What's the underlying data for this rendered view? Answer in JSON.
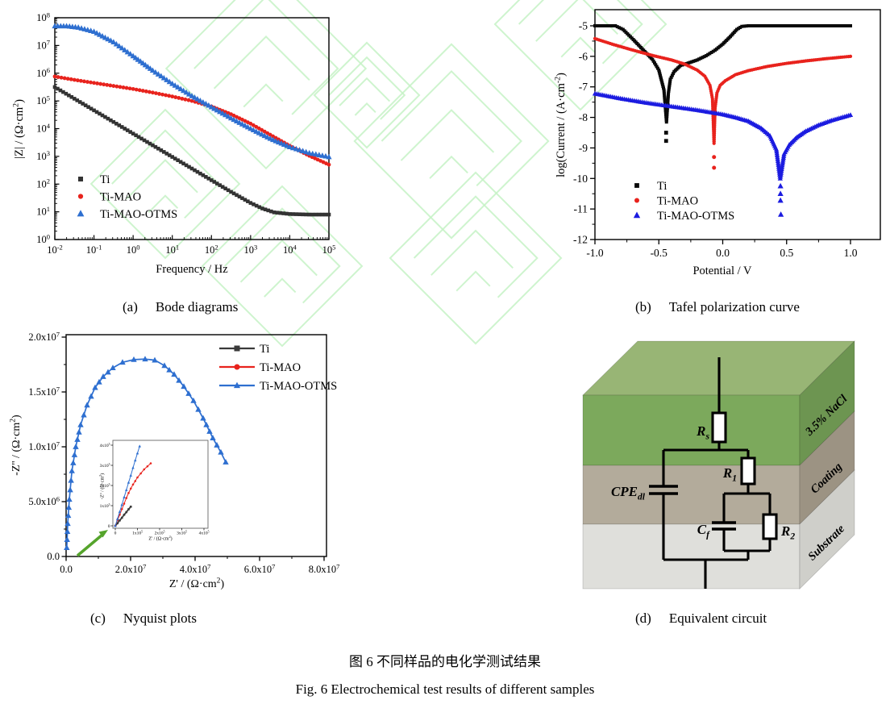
{
  "figure": {
    "caption_zh": "图 6  不同样品的电化学测试结果",
    "caption_en": "Fig. 6  Electrochemical test results of different samples",
    "subcaptions": {
      "a_prefix": "(a)",
      "a_title": "Bode diagrams",
      "b_prefix": "(b)",
      "b_title": "Tafel polarization curve",
      "c_prefix": "(c)",
      "c_title": "Nyquist plots",
      "d_prefix": "(d)",
      "d_title": "Equivalent circuit"
    }
  },
  "colors": {
    "axis": "#000000",
    "arrow_green": "#55a42c",
    "watermark_green": "#c6f2c6"
  },
  "chart_data": [
    {
      "id": "bode",
      "type": "scatter",
      "xlabel": "Frequency / Hz",
      "ylabel": "|Z| / (Ω·cm^{2})",
      "xscale": "log",
      "yscale": "log",
      "xlim_log": [
        -2,
        5
      ],
      "ylim_log": [
        0,
        8
      ],
      "xticks": [
        {
          "v": -2,
          "l": "10^{-2}"
        },
        {
          "v": -1,
          "l": "10^{-1}"
        },
        {
          "v": 0,
          "l": "10^{0}"
        },
        {
          "v": 1,
          "l": "10^{1}"
        },
        {
          "v": 2,
          "l": "10^{2}"
        },
        {
          "v": 3,
          "l": "10^{3}"
        },
        {
          "v": 4,
          "l": "10^{4}"
        },
        {
          "v": 5,
          "l": "10^{5}"
        }
      ],
      "yticks": [
        {
          "v": 0,
          "l": "10^{0}"
        },
        {
          "v": 1,
          "l": "10^{1}"
        },
        {
          "v": 2,
          "l": "10^{2}"
        },
        {
          "v": 3,
          "l": "10^{3}"
        },
        {
          "v": 4,
          "l": "10^{4}"
        },
        {
          "v": 5,
          "l": "10^{5}"
        },
        {
          "v": 6,
          "l": "10^{6}"
        },
        {
          "v": 7,
          "l": "10^{7}"
        },
        {
          "v": 8,
          "l": "10^{8}"
        }
      ],
      "legend_position": "lower-left",
      "series": [
        {
          "name": "Ti",
          "color": "#333333",
          "marker": "square",
          "points_log": [
            [
              -2,
              5.5
            ],
            [
              -1.5,
              5.08
            ],
            [
              -1,
              4.66
            ],
            [
              -0.5,
              4.24
            ],
            [
              0,
              3.82
            ],
            [
              0.5,
              3.4
            ],
            [
              1,
              2.98
            ],
            [
              1.5,
              2.56
            ],
            [
              2,
              2.14
            ],
            [
              2.5,
              1.72
            ],
            [
              3,
              1.32
            ],
            [
              3.3,
              1.12
            ],
            [
              3.6,
              0.98
            ],
            [
              4,
              0.92
            ],
            [
              4.5,
              0.9
            ],
            [
              5,
              0.9
            ]
          ]
        },
        {
          "name": "Ti-MAO",
          "color": "#e8231d",
          "marker": "circle",
          "points_log": [
            [
              -2,
              5.88
            ],
            [
              -1.5,
              5.76
            ],
            [
              -1,
              5.65
            ],
            [
              -0.5,
              5.54
            ],
            [
              0,
              5.43
            ],
            [
              0.5,
              5.3
            ],
            [
              1,
              5.16
            ],
            [
              1.5,
              5.0
            ],
            [
              2,
              4.8
            ],
            [
              2.5,
              4.52
            ],
            [
              3,
              4.18
            ],
            [
              3.5,
              3.78
            ],
            [
              4,
              3.38
            ],
            [
              4.5,
              3.02
            ],
            [
              5,
              2.7
            ]
          ]
        },
        {
          "name": "Ti-MAO-OTMS",
          "color": "#2e6fd0",
          "marker": "triangle",
          "points_log": [
            [
              -2,
              7.7
            ],
            [
              -1.7,
              7.7
            ],
            [
              -1.4,
              7.65
            ],
            [
              -1,
              7.5
            ],
            [
              -0.5,
              7.12
            ],
            [
              0,
              6.62
            ],
            [
              0.5,
              6.1
            ],
            [
              1,
              5.62
            ],
            [
              1.5,
              5.18
            ],
            [
              2,
              4.78
            ],
            [
              2.5,
              4.38
            ],
            [
              3,
              4.0
            ],
            [
              3.5,
              3.64
            ],
            [
              4,
              3.34
            ],
            [
              4.5,
              3.12
            ],
            [
              5,
              2.98
            ]
          ]
        }
      ]
    },
    {
      "id": "tafel",
      "type": "scatter",
      "xlabel": "Potential / V",
      "ylabel": "log(Current / (A·cm^{-2})",
      "xlim": [
        -1.0,
        1.0
      ],
      "ylim": [
        -12,
        -5
      ],
      "xticks": [
        {
          "v": -1.0,
          "l": "-1.0"
        },
        {
          "v": -0.5,
          "l": "-0.5"
        },
        {
          "v": 0.0,
          "l": "0.0"
        },
        {
          "v": 0.5,
          "l": "0.5"
        },
        {
          "v": 1.0,
          "l": "1.0"
        }
      ],
      "yticks": [
        {
          "v": -5,
          "l": "-5"
        },
        {
          "v": -6,
          "l": "-6"
        },
        {
          "v": -7,
          "l": "-7"
        },
        {
          "v": -8,
          "l": "-8"
        },
        {
          "v": -9,
          "l": "-9"
        },
        {
          "v": -10,
          "l": "-10"
        },
        {
          "v": -11,
          "l": "-11"
        },
        {
          "v": -12,
          "l": "-12"
        }
      ],
      "legend_position": "lower-left",
      "series": [
        {
          "name": "Ti",
          "color": "#0a0a0a",
          "marker": "square",
          "points": [
            [
              -1.0,
              -5.0
            ],
            [
              -0.84,
              -5.0
            ],
            [
              -0.78,
              -5.12
            ],
            [
              -0.7,
              -5.45
            ],
            [
              -0.62,
              -5.8
            ],
            [
              -0.55,
              -6.1
            ],
            [
              -0.5,
              -6.45
            ],
            [
              -0.46,
              -7.1
            ],
            [
              -0.44,
              -8.15
            ],
            [
              -0.425,
              -7.2
            ],
            [
              -0.41,
              -6.75
            ],
            [
              -0.38,
              -6.5
            ],
            [
              -0.33,
              -6.3
            ],
            [
              -0.27,
              -6.22
            ],
            [
              -0.2,
              -6.12
            ],
            [
              -0.13,
              -5.98
            ],
            [
              -0.06,
              -5.8
            ],
            [
              0.0,
              -5.6
            ],
            [
              0.06,
              -5.35
            ],
            [
              0.11,
              -5.12
            ],
            [
              0.15,
              -5.02
            ],
            [
              0.2,
              -5.0
            ],
            [
              0.6,
              -5.0
            ],
            [
              1.0,
              -5.0
            ]
          ],
          "outliers": [
            [
              -0.443,
              -8.5
            ],
            [
              -0.443,
              -8.77
            ]
          ]
        },
        {
          "name": "Ti-MAO",
          "color": "#e8231d",
          "marker": "circle",
          "points": [
            [
              -1.0,
              -5.42
            ],
            [
              -0.85,
              -5.62
            ],
            [
              -0.7,
              -5.8
            ],
            [
              -0.55,
              -5.97
            ],
            [
              -0.4,
              -6.12
            ],
            [
              -0.3,
              -6.25
            ],
            [
              -0.2,
              -6.45
            ],
            [
              -0.14,
              -6.65
            ],
            [
              -0.1,
              -6.95
            ],
            [
              -0.08,
              -7.4
            ],
            [
              -0.068,
              -8.85
            ],
            [
              -0.06,
              -7.7
            ],
            [
              -0.045,
              -7.2
            ],
            [
              -0.02,
              -6.95
            ],
            [
              0.02,
              -6.8
            ],
            [
              0.1,
              -6.6
            ],
            [
              0.2,
              -6.47
            ],
            [
              0.35,
              -6.33
            ],
            [
              0.5,
              -6.23
            ],
            [
              0.65,
              -6.15
            ],
            [
              0.8,
              -6.08
            ],
            [
              1.0,
              -6.0
            ]
          ],
          "outliers": [
            [
              -0.068,
              -9.3
            ],
            [
              -0.068,
              -9.65
            ]
          ]
        },
        {
          "name": "Ti-MAO-OTMS",
          "color": "#1b1be0",
          "marker": "triangle",
          "points": [
            [
              -1.0,
              -7.22
            ],
            [
              -0.8,
              -7.38
            ],
            [
              -0.6,
              -7.52
            ],
            [
              -0.4,
              -7.64
            ],
            [
              -0.2,
              -7.76
            ],
            [
              0.0,
              -7.9
            ],
            [
              0.1,
              -8.0
            ],
            [
              0.2,
              -8.12
            ],
            [
              0.3,
              -8.35
            ],
            [
              0.37,
              -8.6
            ],
            [
              0.42,
              -9.05
            ],
            [
              0.45,
              -10.0
            ],
            [
              0.48,
              -9.2
            ],
            [
              0.52,
              -8.9
            ],
            [
              0.58,
              -8.65
            ],
            [
              0.65,
              -8.45
            ],
            [
              0.75,
              -8.25
            ],
            [
              0.85,
              -8.1
            ],
            [
              1.0,
              -7.92
            ]
          ],
          "outliers": [
            [
              0.452,
              -10.25
            ],
            [
              0.452,
              -10.5
            ],
            [
              0.452,
              -10.72
            ],
            [
              0.455,
              -11.18
            ]
          ]
        }
      ]
    },
    {
      "id": "nyquist",
      "type": "line",
      "xlabel": "Z' / (Ω·cm^{2})",
      "ylabel": "-Z'' / (Ω·cm^{2})",
      "xlim": [
        0,
        82000000.0
      ],
      "ylim": [
        0,
        20000000.0
      ],
      "xticks": [
        {
          "v": 0,
          "l": "0.0"
        },
        {
          "v": 20000000.0,
          "l": "2.0x10^{7}"
        },
        {
          "v": 40000000.0,
          "l": "4.0x10^{7}"
        },
        {
          "v": 60000000.0,
          "l": "6.0x10^{7}"
        },
        {
          "v": 80000000.0,
          "l": "8.0x10^{7}"
        }
      ],
      "yticks": [
        {
          "v": 0,
          "l": "0.0"
        },
        {
          "v": 5000000.0,
          "l": "5.0x10^{6}"
        },
        {
          "v": 10000000.0,
          "l": "1.0x10^{7}"
        },
        {
          "v": 15000000.0,
          "l": "1.5x10^{7}"
        },
        {
          "v": 20000000.0,
          "l": "2.0x10^{7}"
        }
      ],
      "legend_position": "upper-right",
      "series": [
        {
          "name": "Ti",
          "color": "#3a3a3a",
          "marker": "square",
          "points": []
        },
        {
          "name": "Ti-MAO",
          "color": "#e8231d",
          "marker": "circle",
          "points": []
        },
        {
          "name": "Ti-MAO-OTMS",
          "color": "#2e6fd0",
          "marker": "triangle",
          "points": [
            [
              200000.0,
              800000.0
            ],
            [
              500000.0,
              3000000.0
            ],
            [
              1000000.0,
              5200000.0
            ],
            [
              1800000.0,
              7800000.0
            ],
            [
              3000000.0,
              10000000.0
            ],
            [
              4500000.0,
              12000000.0
            ],
            [
              6500000.0,
              13800000.0
            ],
            [
              9000000.0,
              15400000.0
            ],
            [
              11500000.0,
              16400000.0
            ],
            [
              14500000.0,
              17200000.0
            ],
            [
              17500000.0,
              17700000.0
            ],
            [
              21000000.0,
              17950000.0
            ],
            [
              24500000.0,
              18000000.0
            ],
            [
              27500000.0,
              17900000.0
            ],
            [
              30500000.0,
              17400000.0
            ],
            [
              33500000.0,
              16600000.0
            ],
            [
              36500000.0,
              15500000.0
            ],
            [
              39500000.0,
              14200000.0
            ],
            [
              42500000.0,
              12600000.0
            ],
            [
              45500000.0,
              10800000.0
            ],
            [
              48000000.0,
              9500000.0
            ],
            [
              49500000.0,
              8600000.0
            ]
          ]
        }
      ],
      "inset": {
        "xlabel": "Z' / (Ω·cm^{2})",
        "ylabel": "-Z'' / (Ω·cm^{2})",
        "xlim": [
          0,
          400000.0
        ],
        "ylim": [
          0,
          400000.0
        ],
        "ticks": [
          {
            "v": 0,
            "l": "0"
          },
          {
            "v": 100000.0,
            "l": "1x10^{5}"
          },
          {
            "v": 200000.0,
            "l": "2x10^{5}"
          },
          {
            "v": 300000.0,
            "l": "3x10^{5}"
          },
          {
            "v": 400000.0,
            "l": "4x10^{5}"
          }
        ],
        "series": [
          {
            "name": "Ti",
            "color": "#3a3a3a",
            "marker": "square",
            "points": [
              [
                0,
                0
              ],
              [
                10000.0,
                13000.0
              ],
              [
                20000.0,
                27000.0
              ],
              [
                30000.0,
                40000.0
              ],
              [
                40000.0,
                55000.0
              ],
              [
                50000.0,
                68000.0
              ],
              [
                60000.0,
                82000.0
              ],
              [
                70000.0,
                95000.0
              ]
            ]
          },
          {
            "name": "Ti-MAO",
            "color": "#e8231d",
            "marker": "circle",
            "points": [
              [
                0,
                0
              ],
              [
                10000.0,
                28000.0
              ],
              [
                20000.0,
                55000.0
              ],
              [
                30000.0,
                83000.0
              ],
              [
                40000.0,
                110000.0
              ],
              [
                50000.0,
                138000.0
              ],
              [
                60000.0,
                163000.0
              ],
              [
                70000.0,
                185000.0
              ],
              [
                80000.0,
                205000.0
              ],
              [
                90000.0,
                222000.0
              ],
              [
                100000.0,
                240000.0
              ],
              [
                115000.0,
                260000.0
              ],
              [
                130000.0,
                280000.0
              ],
              [
                145000.0,
                295000.0
              ],
              [
                160000.0,
                310000.0
              ]
            ]
          },
          {
            "name": "Ti-MAO-OTMS",
            "color": "#2e6fd0",
            "marker": "triangle",
            "points": [
              [
                0,
                0
              ],
              [
                10000.0,
                35000.0
              ],
              [
                20000.0,
                70000.0
              ],
              [
                30000.0,
                105000.0
              ],
              [
                40000.0,
                142000.0
              ],
              [
                50000.0,
                178000.0
              ],
              [
                60000.0,
                215000.0
              ],
              [
                70000.0,
                250000.0
              ],
              [
                80000.0,
                288000.0
              ],
              [
                90000.0,
                325000.0
              ],
              [
                100000.0,
                360000.0
              ],
              [
                110000.0,
                395000.0
              ]
            ]
          }
        ]
      }
    }
  ],
  "circuit": {
    "elements": {
      "Rs": "R_{s}",
      "CPE": "CPE_{dl}",
      "R1": "R_{1}",
      "Cf": "C_{f}",
      "R2": "R_{2}"
    },
    "layers": [
      "3.5% NaCl",
      "Coating",
      "Substrate"
    ]
  }
}
